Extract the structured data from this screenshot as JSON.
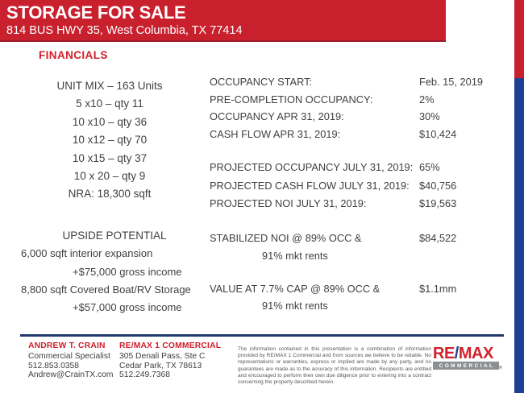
{
  "colors": {
    "red": "#c9202e",
    "text_red": "#d0202c",
    "blue_bar": "#1e4094",
    "navy": "#21386b",
    "logo_blue": "#1e3f96",
    "gray_bar": "#8d9093",
    "text": "#414042",
    "text_light": "#58595b"
  },
  "header": {
    "title": "STORAGE FOR SALE",
    "subtitle": "814 BUS HWY 35, West Columbia, TX 77414"
  },
  "section_title": "FINANCIALS",
  "unit_mix": {
    "title": "UNIT MIX – 163 Units",
    "items": [
      "5 x10 – qty 11",
      "10 x10 – qty 36",
      "10 x12 – qty 70",
      "10 x15 – qty 37",
      "10 x 20 – qty 9"
    ],
    "nra": "NRA: 18,300 sqft"
  },
  "financials": {
    "group1": [
      {
        "label": "OCCUPANCY START:",
        "value": "Feb. 15, 2019"
      },
      {
        "label": "PRE-COMPLETION OCCUPANCY:",
        "value": "2%"
      },
      {
        "label": "OCCUPANCY APR 31, 2019:",
        "value": "30%"
      },
      {
        "label": "CASH FLOW APR 31, 2019:",
        "value": "$10,424"
      }
    ],
    "group2": [
      {
        "label": "PROJECTED OCCUPANCY JULY 31, 2019:",
        "value": "65%"
      },
      {
        "label": "PROJECTED CASH FLOW JULY 31, 2019:",
        "value": "$40,756"
      },
      {
        "label": "PROJECTED NOI JULY 31, 2019:",
        "value": "$19,563"
      }
    ],
    "stabilized": {
      "label_line1": "STABILIZED NOI @ 89% OCC &",
      "label_line2": "91% mkt rents",
      "value": "$84,522"
    },
    "value_at_cap": {
      "label_line1": "VALUE AT 7.7% CAP @ 89% OCC &",
      "label_line2": "91% mkt rents",
      "value": "$1.1mm"
    }
  },
  "upside": {
    "title": "UPSIDE POTENTIAL",
    "line1": "6,000 sqft interior expansion",
    "line2": "+$75,000 gross income",
    "line3": "8,800 sqft Covered Boat/RV Storage",
    "line4": "+$57,000 gross income"
  },
  "footer": {
    "agent": {
      "name": "ANDREW T. CRAIN",
      "role": "Commercial Specialist",
      "phone": "512.853.0358",
      "email": "Andrew@CrainTX.com"
    },
    "office": {
      "name": "RE/MAX 1 COMMERCIAL",
      "address1": "305 Denali Pass, Ste C",
      "address2": "Cedar Park, TX 78613",
      "phone": "512.249.7368"
    },
    "disclaimer": "The information contained in this presentation is a combination of information provided by RE/MAX 1 Commercial and from sources we believe to be reliable.  No representations or warranties, express or implied are made by any party, and no guarantees are made as to the accuracy of this information.  Recipients are entitled and encouraged to perform their own due diligence prior to entering into a contract concerning the property described herein.",
    "logo": {
      "re": "RE",
      "slash": "/",
      "max": "MAX",
      "strip": "COMMERCIAL",
      "registered": "®"
    }
  }
}
